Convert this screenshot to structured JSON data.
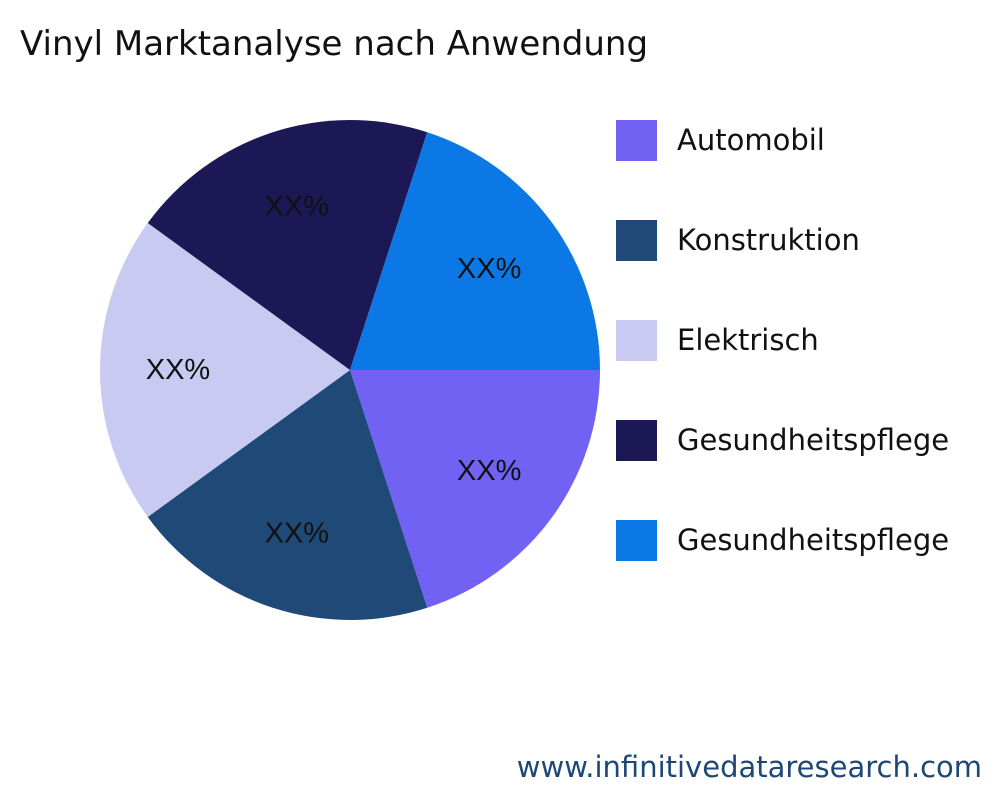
{
  "chart_data": {
    "type": "pie",
    "title": "Vinyl Marktanalyse nach Anwendung",
    "slices": [
      {
        "name": "Automobil",
        "value": 20,
        "label": "XX%",
        "color": "#7262f4"
      },
      {
        "name": "Konstruktion",
        "value": 20,
        "label": "XX%",
        "color": "#1f4a78"
      },
      {
        "name": "Elektrisch",
        "value": 20,
        "label": "XX%",
        "color": "#c9caf1"
      },
      {
        "name": "Gesundheitspflege",
        "value": 20,
        "label": "XX%",
        "color": "#1c1856"
      },
      {
        "name": "Gesundheitspflege",
        "value": 20,
        "label": "XX%",
        "color": "#0c78e6"
      }
    ],
    "legend_position": "right"
  },
  "footer": {
    "text": "www.infinitivedataresearch.com"
  }
}
